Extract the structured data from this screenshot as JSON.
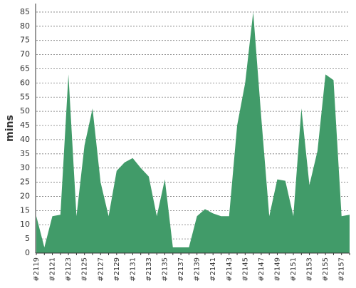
{
  "chart_data": {
    "type": "area",
    "y_label": "mins",
    "color": "#419b69",
    "categories": [
      "#2119",
      null,
      "#2121",
      null,
      "#2123",
      null,
      "#2125",
      null,
      "#2127",
      null,
      "#2129",
      null,
      "#2131",
      null,
      "#2133",
      null,
      "#2135",
      null,
      "#2137",
      null,
      "#2139",
      null,
      "#2141",
      null,
      "#2143",
      null,
      "#2145",
      null,
      "#2147",
      null,
      "#2149",
      null,
      "#2151",
      null,
      "#2153",
      null,
      "#2155",
      null,
      "#2157",
      null
    ],
    "values": [
      13,
      2,
      13,
      13.5,
      63,
      13,
      38,
      51,
      25,
      13,
      29,
      32,
      33.5,
      30,
      27,
      13,
      26,
      2,
      2,
      2,
      13,
      15.5,
      14,
      13,
      13,
      45,
      60,
      85,
      48,
      13,
      26,
      25.5,
      13,
      51,
      24,
      36,
      63,
      61,
      13,
      13.5
    ],
    "ylim": [
      0,
      88
    ],
    "yticks": [
      0,
      5,
      10,
      15,
      20,
      25,
      30,
      35,
      40,
      45,
      50,
      55,
      60,
      65,
      70,
      75,
      80,
      85
    ],
    "grid": true
  }
}
